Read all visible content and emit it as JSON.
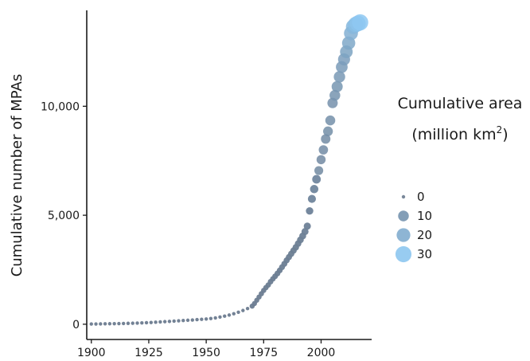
{
  "chart_data": {
    "type": "scatter",
    "title": "",
    "xlabel": "",
    "ylabel": "Cumulative number of MPAs",
    "xlim": [
      1898,
      2022
    ],
    "ylim": [
      -700,
      14400
    ],
    "x_ticks": [
      1900,
      1925,
      1950,
      1975,
      2000
    ],
    "x_tick_labels": [
      "1900",
      "1925",
      "1950",
      "1975",
      "2000"
    ],
    "y_ticks": [
      0,
      5000,
      10000
    ],
    "y_tick_labels": [
      "0",
      "5,000",
      "10,000"
    ],
    "grid": false,
    "size_encoding": "Cumulative area (million km²)",
    "colors": {
      "low": "#6b7b8f",
      "high": "#8ec8f2"
    },
    "legend": {
      "title_line1": "Cumulative area",
      "title_line2_prefix": "(million km",
      "title_line2_sup": "2",
      "title_line2_suffix": ")",
      "placement": "right",
      "entries": [
        {
          "label": "0",
          "value": 0
        },
        {
          "label": "10",
          "value": 10
        },
        {
          "label": "20",
          "value": 20
        },
        {
          "label": "30",
          "value": 30
        }
      ]
    },
    "points": [
      {
        "x": 1900,
        "y": 10,
        "size": 0
      },
      {
        "x": 1902,
        "y": 12,
        "size": 0
      },
      {
        "x": 1904,
        "y": 15,
        "size": 0
      },
      {
        "x": 1906,
        "y": 18,
        "size": 0
      },
      {
        "x": 1908,
        "y": 22,
        "size": 0
      },
      {
        "x": 1910,
        "y": 26,
        "size": 0
      },
      {
        "x": 1912,
        "y": 30,
        "size": 0
      },
      {
        "x": 1914,
        "y": 35,
        "size": 0
      },
      {
        "x": 1916,
        "y": 40,
        "size": 0
      },
      {
        "x": 1918,
        "y": 45,
        "size": 0
      },
      {
        "x": 1920,
        "y": 52,
        "size": 0
      },
      {
        "x": 1922,
        "y": 60,
        "size": 0
      },
      {
        "x": 1924,
        "y": 70,
        "size": 0
      },
      {
        "x": 1926,
        "y": 80,
        "size": 0
      },
      {
        "x": 1928,
        "y": 92,
        "size": 0
      },
      {
        "x": 1930,
        "y": 105,
        "size": 0
      },
      {
        "x": 1932,
        "y": 118,
        "size": 0
      },
      {
        "x": 1934,
        "y": 130,
        "size": 0
      },
      {
        "x": 1936,
        "y": 145,
        "size": 0
      },
      {
        "x": 1938,
        "y": 158,
        "size": 0
      },
      {
        "x": 1940,
        "y": 170,
        "size": 0
      },
      {
        "x": 1942,
        "y": 182,
        "size": 0
      },
      {
        "x": 1944,
        "y": 195,
        "size": 0
      },
      {
        "x": 1946,
        "y": 210,
        "size": 0
      },
      {
        "x": 1948,
        "y": 225,
        "size": 0
      },
      {
        "x": 1950,
        "y": 240,
        "size": 0
      },
      {
        "x": 1952,
        "y": 260,
        "size": 0
      },
      {
        "x": 1954,
        "y": 290,
        "size": 0
      },
      {
        "x": 1956,
        "y": 330,
        "size": 0
      },
      {
        "x": 1958,
        "y": 370,
        "size": 0
      },
      {
        "x": 1960,
        "y": 420,
        "size": 0
      },
      {
        "x": 1962,
        "y": 480,
        "size": 0
      },
      {
        "x": 1964,
        "y": 550,
        "size": 0
      },
      {
        "x": 1966,
        "y": 630,
        "size": 0
      },
      {
        "x": 1968,
        "y": 720,
        "size": 0
      },
      {
        "x": 1970,
        "y": 830,
        "size": 0.5
      },
      {
        "x": 1971,
        "y": 950,
        "size": 0.5
      },
      {
        "x": 1972,
        "y": 1100,
        "size": 0.5
      },
      {
        "x": 1973,
        "y": 1250,
        "size": 0.5
      },
      {
        "x": 1974,
        "y": 1400,
        "size": 0.6
      },
      {
        "x": 1975,
        "y": 1550,
        "size": 0.6
      },
      {
        "x": 1976,
        "y": 1680,
        "size": 0.7
      },
      {
        "x": 1977,
        "y": 1800,
        "size": 0.7
      },
      {
        "x": 1978,
        "y": 1950,
        "size": 0.8
      },
      {
        "x": 1979,
        "y": 2080,
        "size": 0.8
      },
      {
        "x": 1980,
        "y": 2200,
        "size": 0.9
      },
      {
        "x": 1981,
        "y": 2330,
        "size": 1
      },
      {
        "x": 1982,
        "y": 2470,
        "size": 1
      },
      {
        "x": 1983,
        "y": 2620,
        "size": 1.1
      },
      {
        "x": 1984,
        "y": 2770,
        "size": 1.2
      },
      {
        "x": 1985,
        "y": 2930,
        "size": 1.3
      },
      {
        "x": 1986,
        "y": 3080,
        "size": 1.4
      },
      {
        "x": 1987,
        "y": 3230,
        "size": 1.5
      },
      {
        "x": 1988,
        "y": 3380,
        "size": 1.6
      },
      {
        "x": 1989,
        "y": 3530,
        "size": 1.7
      },
      {
        "x": 1990,
        "y": 3700,
        "size": 1.8
      },
      {
        "x": 1991,
        "y": 3870,
        "size": 2
      },
      {
        "x": 1992,
        "y": 4050,
        "size": 2.2
      },
      {
        "x": 1993,
        "y": 4250,
        "size": 2.4
      },
      {
        "x": 1994,
        "y": 4500,
        "size": 2.6
      },
      {
        "x": 1995,
        "y": 5200,
        "size": 3
      },
      {
        "x": 1996,
        "y": 5750,
        "size": 4
      },
      {
        "x": 1997,
        "y": 6200,
        "size": 4.5
      },
      {
        "x": 1998,
        "y": 6650,
        "size": 5
      },
      {
        "x": 1999,
        "y": 7050,
        "size": 5.5
      },
      {
        "x": 2000,
        "y": 7550,
        "size": 6
      },
      {
        "x": 2001,
        "y": 8000,
        "size": 6.5
      },
      {
        "x": 2002,
        "y": 8500,
        "size": 7
      },
      {
        "x": 2003,
        "y": 8850,
        "size": 7.5
      },
      {
        "x": 2004,
        "y": 9350,
        "size": 8
      },
      {
        "x": 2005,
        "y": 10150,
        "size": 9
      },
      {
        "x": 2006,
        "y": 10500,
        "size": 10
      },
      {
        "x": 2007,
        "y": 10900,
        "size": 11
      },
      {
        "x": 2008,
        "y": 11350,
        "size": 12
      },
      {
        "x": 2009,
        "y": 11800,
        "size": 13
      },
      {
        "x": 2010,
        "y": 12150,
        "size": 14
      },
      {
        "x": 2011,
        "y": 12500,
        "size": 16
      },
      {
        "x": 2012,
        "y": 12900,
        "size": 18
      },
      {
        "x": 2013,
        "y": 13350,
        "size": 21
      },
      {
        "x": 2014,
        "y": 13650,
        "size": 24
      },
      {
        "x": 2015,
        "y": 13750,
        "size": 27
      },
      {
        "x": 2016,
        "y": 13800,
        "size": 29
      },
      {
        "x": 2017,
        "y": 13850,
        "size": 31
      }
    ]
  }
}
